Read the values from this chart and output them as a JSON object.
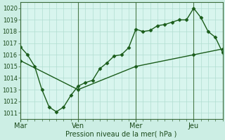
{
  "background_color": "#cceee4",
  "plot_bg_color": "#d8f5ee",
  "grid_color": "#b0ddd0",
  "line_color": "#1a5c1a",
  "marker_color": "#1a5c1a",
  "xlabel": "Pression niveau de la mer( hPa )",
  "ylim": [
    1010.5,
    1020.5
  ],
  "yticks": [
    1011,
    1012,
    1013,
    1014,
    1015,
    1016,
    1017,
    1018,
    1019,
    1020
  ],
  "xtick_labels": [
    "Mar",
    "Ven",
    "Mer",
    "Jeu"
  ],
  "xtick_positions": [
    0,
    24,
    48,
    72
  ],
  "vline_positions": [
    0,
    24,
    48,
    72
  ],
  "xlim": [
    0,
    84
  ],
  "line1_x": [
    0,
    3,
    6,
    9,
    12,
    15,
    18,
    21,
    24,
    27,
    30,
    33,
    36,
    39,
    42,
    45,
    48,
    51,
    54,
    57,
    60,
    63,
    66,
    69,
    72,
    75,
    78,
    81,
    84
  ],
  "line1_y": [
    1016.7,
    1016.0,
    1015.0,
    1013.0,
    1011.5,
    1011.1,
    1011.5,
    1012.5,
    1013.3,
    1013.6,
    1013.8,
    1014.8,
    1015.3,
    1015.9,
    1016.0,
    1016.6,
    1018.2,
    1018.0,
    1018.1,
    1018.5,
    1018.6,
    1018.8,
    1019.0,
    1019.0,
    1020.0,
    1019.2,
    1018.0,
    1017.5,
    1016.2
  ],
  "line2_x": [
    0,
    24,
    48,
    72,
    84
  ],
  "line2_y": [
    1015.5,
    1013.0,
    1015.0,
    1016.0,
    1016.5
  ],
  "minor_x_spacing": 3,
  "major_x_spacing": 24
}
